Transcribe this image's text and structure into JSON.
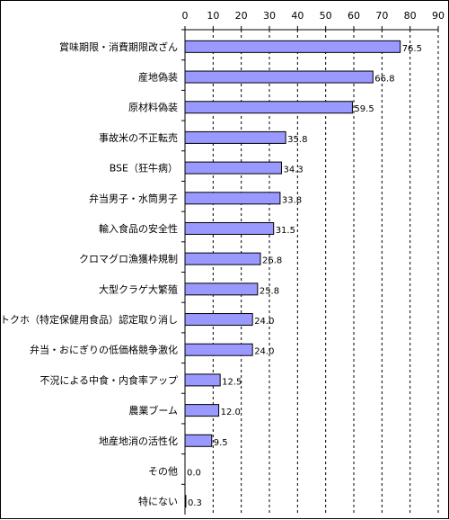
{
  "chart_data": {
    "type": "bar",
    "orientation": "horizontal",
    "categories": [
      "賞味期限・消費期限改ざん",
      "産地偽装",
      "原材料偽装",
      "事故米の不正転売",
      "BSE（狂牛病）",
      "弁当男子・水筒男子",
      "輸入食品の安全性",
      "クロマグロ漁獲枠規制",
      "大型クラゲ大繁殖",
      "トクホ（特定保健用食品）認定取り消し",
      "弁当・おにぎりの低価格競争激化",
      "不況による中食・内食率アップ",
      "農業ブーム",
      "地産地消の活性化",
      "その他",
      "特にない"
    ],
    "values": [
      76.5,
      66.8,
      59.5,
      35.8,
      34.3,
      33.8,
      31.5,
      26.8,
      25.8,
      24.0,
      24.0,
      12.5,
      12.0,
      9.5,
      0.0,
      0.3
    ],
    "value_labels": [
      "76.5",
      "66.8",
      "59.5",
      "35.8",
      "34.3",
      "33.8",
      "31.5",
      "26.8",
      "25.8",
      "24.0",
      "24.0",
      "12.5",
      "12.0",
      "9.5",
      "0.0",
      "0.3"
    ],
    "x_ticks": [
      "0",
      "10",
      "20",
      "30",
      "40",
      "50",
      "60",
      "70",
      "80",
      "90"
    ],
    "xlim": [
      0,
      90
    ],
    "x_axis_position": "top",
    "grid": "vertical dashed",
    "bar_color": "#9999ff",
    "bar_border_color": "#000000"
  }
}
